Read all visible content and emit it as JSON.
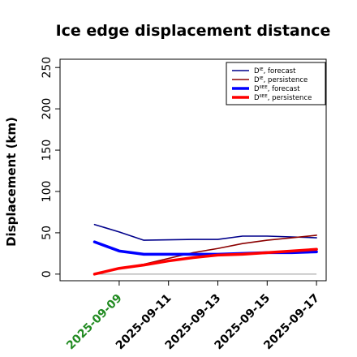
{
  "chart_data": {
    "type": "line",
    "title": "Ice edge displacement distance",
    "ylabel": "Displacement (km)",
    "xlabel": "",
    "ylim": [
      -8,
      260
    ],
    "yticks": [
      0,
      50,
      100,
      150,
      200,
      250
    ],
    "x": [
      "2025-09-08",
      "2025-09-09",
      "2025-09-10",
      "2025-09-11",
      "2025-09-12",
      "2025-09-13",
      "2025-09-14",
      "2025-09-15",
      "2025-09-16",
      "2025-09-17"
    ],
    "xticks": [
      "2025-09-09",
      "2025-09-11",
      "2025-09-13",
      "2025-09-15",
      "2025-09-17"
    ],
    "highlight_tick": "2025-09-09",
    "highlight_color": "#228b22",
    "reference_line": 0,
    "grid": false,
    "legend_position": "top-right",
    "series": [
      {
        "name": "D^IE_forecast",
        "label_base": "D",
        "label_sup": "IE",
        "label_rest": ", forecast",
        "color": "#00008b",
        "width": 1.6,
        "values": [
          60,
          51,
          41,
          41.5,
          42,
          42,
          46,
          46,
          45,
          44
        ]
      },
      {
        "name": "D^IE_persistence",
        "label_base": "D",
        "label_sup": "IE",
        "label_rest": ", persistence",
        "color": "#8b0000",
        "width": 1.6,
        "values": [
          0,
          7,
          12,
          19,
          26,
          31,
          37,
          41,
          44,
          47
        ]
      },
      {
        "name": "D^IIEE_forecast",
        "label_base": "D",
        "label_sup": "IIEE",
        "label_rest": ", forecast",
        "color": "#0000ff",
        "width": 3.5,
        "values": [
          39,
          28,
          24,
          24,
          24,
          24,
          25,
          26,
          26,
          27
        ]
      },
      {
        "name": "D^IIEE_persistence",
        "label_base": "D",
        "label_sup": "IIEE",
        "label_rest": ", persistence",
        "color": "#ff0000",
        "width": 3.5,
        "values": [
          0,
          7,
          11,
          16,
          20,
          23,
          24,
          26,
          28,
          30
        ]
      }
    ]
  }
}
